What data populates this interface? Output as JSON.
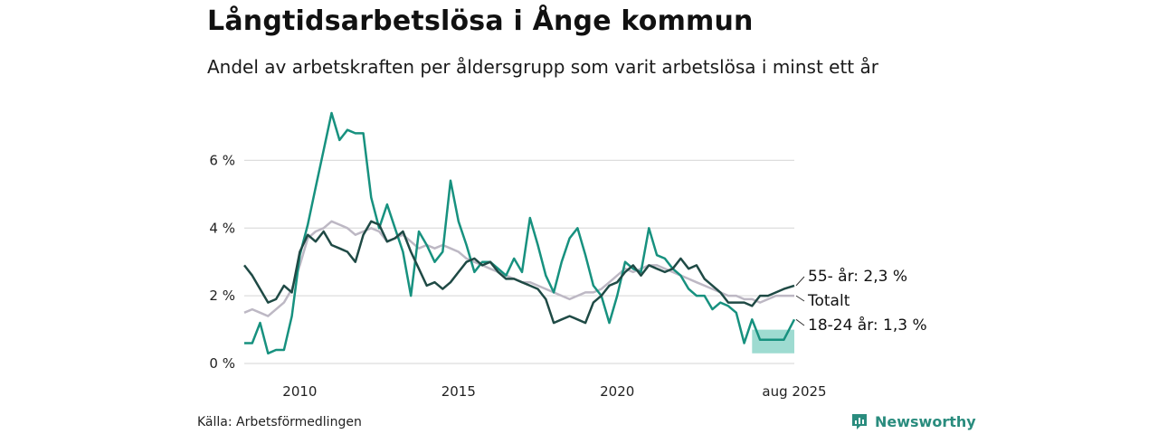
{
  "header": {
    "title": "Långtidsarbetslösa i Ånge kommun",
    "subtitle": "Andel av arbetskraften per åldersgrupp som varit arbetslösa i minst ett år"
  },
  "footer": {
    "source": "Källa: Arbetsförmedlingen",
    "brand": "Newsworthy"
  },
  "colors": {
    "age_55": "#1f4a45",
    "total": "#bdb8c4",
    "age_18_24": "#17917f",
    "band_18_24": "#7ecfc1",
    "gridline": "#dddddd",
    "brand": "#2a8c7e"
  },
  "chart_data": {
    "type": "line",
    "title": "Långtidsarbetslösa i Ånge kommun",
    "subtitle": "Andel av arbetskraften per åldersgrupp som varit arbetslösa i minst ett år",
    "xlabel": "",
    "ylabel": "",
    "x_ticks": [
      2010,
      2015,
      2020,
      "aug 2025"
    ],
    "y_ticks": [
      "0 %",
      "2 %",
      "4 %",
      "6 %"
    ],
    "ylim": [
      0,
      7.6
    ],
    "grid": true,
    "legend": "none",
    "series": [
      {
        "name": "Totalt",
        "end_label": "Totalt",
        "x": [
          2008.25,
          2008.5,
          2008.75,
          2009.0,
          2009.25,
          2009.5,
          2009.75,
          2010.0,
          2010.25,
          2010.5,
          2010.75,
          2011.0,
          2011.25,
          2011.5,
          2011.75,
          2012.0,
          2012.25,
          2012.5,
          2012.75,
          2013.0,
          2013.25,
          2013.5,
          2013.75,
          2014.0,
          2014.25,
          2014.5,
          2014.75,
          2015.0,
          2015.25,
          2015.5,
          2015.75,
          2016.0,
          2016.25,
          2016.5,
          2016.75,
          2017.0,
          2017.25,
          2017.5,
          2017.75,
          2018.0,
          2018.25,
          2018.5,
          2018.75,
          2019.0,
          2019.25,
          2019.5,
          2019.75,
          2020.0,
          2020.25,
          2020.5,
          2020.75,
          2021.0,
          2021.25,
          2021.5,
          2021.75,
          2022.0,
          2022.25,
          2022.5,
          2022.75,
          2023.0,
          2023.25,
          2023.5,
          2023.75,
          2024.0,
          2024.25,
          2024.5,
          2024.75,
          2025.0,
          2025.25,
          2025.58
        ],
        "values": [
          1.5,
          1.6,
          1.5,
          1.4,
          1.6,
          1.8,
          2.2,
          2.9,
          3.7,
          3.9,
          4.0,
          4.2,
          4.1,
          4.0,
          3.8,
          3.9,
          4.0,
          3.9,
          3.6,
          3.7,
          3.8,
          3.6,
          3.4,
          3.5,
          3.4,
          3.5,
          3.4,
          3.3,
          3.1,
          3.0,
          2.9,
          2.8,
          2.7,
          2.6,
          2.5,
          2.4,
          2.4,
          2.3,
          2.2,
          2.1,
          2.0,
          1.9,
          2.0,
          2.1,
          2.1,
          2.2,
          2.4,
          2.6,
          2.8,
          2.7,
          2.8,
          2.9,
          2.9,
          2.8,
          2.7,
          2.6,
          2.5,
          2.4,
          2.3,
          2.2,
          2.1,
          2.0,
          2.0,
          1.9,
          1.9,
          1.8,
          1.9,
          2.0,
          2.0,
          2.0
        ]
      },
      {
        "name": "55- år",
        "end_label": "55- år: 2,3 %",
        "x": [
          2008.25,
          2008.5,
          2008.75,
          2009.0,
          2009.25,
          2009.5,
          2009.75,
          2010.0,
          2010.25,
          2010.5,
          2010.75,
          2011.0,
          2011.25,
          2011.5,
          2011.75,
          2012.0,
          2012.25,
          2012.5,
          2012.75,
          2013.0,
          2013.25,
          2013.5,
          2013.75,
          2014.0,
          2014.25,
          2014.5,
          2014.75,
          2015.0,
          2015.25,
          2015.5,
          2015.75,
          2016.0,
          2016.25,
          2016.5,
          2016.75,
          2017.0,
          2017.25,
          2017.5,
          2017.75,
          2018.0,
          2018.25,
          2018.5,
          2018.75,
          2019.0,
          2019.25,
          2019.5,
          2019.75,
          2020.0,
          2020.25,
          2020.5,
          2020.75,
          2021.0,
          2021.25,
          2021.5,
          2021.75,
          2022.0,
          2022.25,
          2022.5,
          2022.75,
          2023.0,
          2023.25,
          2023.5,
          2023.75,
          2024.0,
          2024.25,
          2024.5,
          2024.75,
          2025.0,
          2025.25,
          2025.58
        ],
        "values": [
          2.9,
          2.6,
          2.2,
          1.8,
          1.9,
          2.3,
          2.1,
          3.3,
          3.8,
          3.6,
          3.9,
          3.5,
          3.4,
          3.3,
          3.0,
          3.8,
          4.2,
          4.1,
          3.6,
          3.7,
          3.9,
          3.3,
          2.8,
          2.3,
          2.4,
          2.2,
          2.4,
          2.7,
          3.0,
          3.1,
          2.9,
          3.0,
          2.7,
          2.5,
          2.5,
          2.4,
          2.3,
          2.2,
          1.9,
          1.2,
          1.3,
          1.4,
          1.3,
          1.2,
          1.8,
          2.0,
          2.3,
          2.4,
          2.7,
          2.9,
          2.6,
          2.9,
          2.8,
          2.7,
          2.8,
          3.1,
          2.8,
          2.9,
          2.5,
          2.3,
          2.1,
          1.8,
          1.8,
          1.8,
          1.7,
          2.0,
          2.0,
          2.1,
          2.2,
          2.3
        ]
      },
      {
        "name": "18-24 år",
        "end_label": "18-24 år: 1,3 %",
        "x": [
          2008.25,
          2008.5,
          2008.75,
          2009.0,
          2009.25,
          2009.5,
          2009.75,
          2010.0,
          2010.25,
          2010.5,
          2010.75,
          2011.0,
          2011.25,
          2011.5,
          2011.75,
          2012.0,
          2012.25,
          2012.5,
          2012.75,
          2013.0,
          2013.25,
          2013.5,
          2013.75,
          2014.0,
          2014.25,
          2014.5,
          2014.75,
          2015.0,
          2015.25,
          2015.5,
          2015.75,
          2016.0,
          2016.25,
          2016.5,
          2016.75,
          2017.0,
          2017.25,
          2017.5,
          2017.75,
          2018.0,
          2018.25,
          2018.5,
          2018.75,
          2019.0,
          2019.25,
          2019.5,
          2019.75,
          2020.0,
          2020.25,
          2020.5,
          2020.75,
          2021.0,
          2021.25,
          2021.5,
          2021.75,
          2022.0,
          2022.25,
          2022.5,
          2022.75,
          2023.0,
          2023.25,
          2023.5,
          2023.75,
          2024.0,
          2024.25,
          2024.5,
          2024.75,
          2025.0,
          2025.25,
          2025.58
        ],
        "values": [
          0.6,
          0.6,
          1.2,
          0.3,
          0.4,
          0.4,
          1.4,
          3.2,
          4.1,
          5.2,
          6.3,
          7.4,
          6.6,
          6.9,
          6.8,
          6.8,
          4.9,
          4.0,
          4.7,
          4.0,
          3.3,
          2.0,
          3.9,
          3.5,
          3.0,
          3.3,
          5.4,
          4.2,
          3.5,
          2.7,
          3.0,
          3.0,
          2.8,
          2.6,
          3.1,
          2.7,
          4.3,
          3.5,
          2.6,
          2.1,
          3.0,
          3.7,
          4.0,
          3.2,
          2.3,
          2.0,
          1.2,
          2.0,
          3.0,
          2.8,
          2.7,
          4.0,
          3.2,
          3.1,
          2.8,
          2.6,
          2.2,
          2.0,
          2.0,
          1.6,
          1.8,
          1.7,
          1.5,
          0.6,
          1.3,
          0.7,
          0.7,
          0.7,
          0.7,
          1.3
        ]
      },
      {
        "name": "18-24 år (osäkerhetsintervall)",
        "type": "area",
        "x": [
          2024.25,
          2024.4,
          2024.5,
          2024.75,
          2025.0,
          2025.25,
          2025.58
        ],
        "lower": [
          0.3,
          0.3,
          0.3,
          0.3,
          0.3,
          0.3,
          0.3
        ],
        "upper": [
          1.0,
          1.0,
          1.0,
          1.0,
          1.0,
          1.0,
          1.0
        ]
      }
    ]
  }
}
